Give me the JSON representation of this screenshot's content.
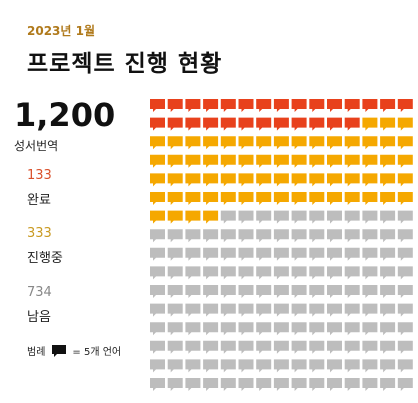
{
  "header": {
    "date": "2023년 1월",
    "title": "프로젝트 진행 현황"
  },
  "summary": {
    "total": "1,200",
    "total_label": "성서번역"
  },
  "stats": [
    {
      "value": "133",
      "label": "완료",
      "color": "#d9502b"
    },
    {
      "value": "333",
      "label": "진행중",
      "color": "#d9a626"
    },
    {
      "value": "734",
      "label": "남음",
      "color": "#888888"
    }
  ],
  "legend": {
    "prefix": "범례",
    "text": "= 5개 언어"
  },
  "icon": "speech-bubble-icon",
  "colors": {
    "done": "#e8411c",
    "in_progress": "#f5a800",
    "remaining": "#bdbdbd",
    "legend_icon": "#111111"
  },
  "chart_data": {
    "type": "waffle",
    "unit": 5,
    "columns": 15,
    "rows": 16,
    "categories": [
      "완료",
      "진행중",
      "남음"
    ],
    "values": [
      133,
      333,
      734
    ],
    "icon_counts": [
      27,
      67,
      146
    ]
  }
}
